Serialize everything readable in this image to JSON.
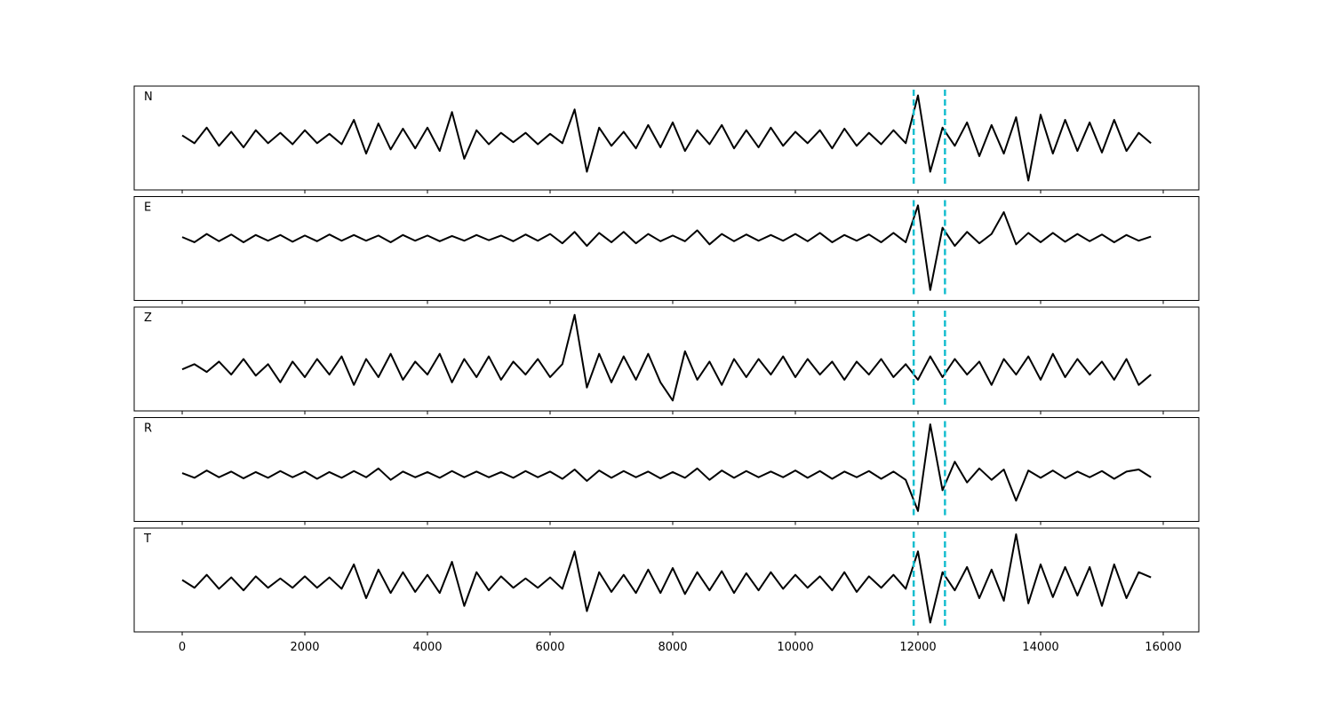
{
  "chart_data": {
    "type": "line",
    "layout": "stacked-panels",
    "x": [
      0,
      200,
      400,
      600,
      800,
      1000,
      1200,
      1400,
      1600,
      1800,
      2000,
      2200,
      2400,
      2600,
      2800,
      3000,
      3200,
      3400,
      3600,
      3800,
      4000,
      4200,
      4400,
      4600,
      4800,
      5000,
      5200,
      5400,
      5600,
      5800,
      6000,
      6200,
      6400,
      6600,
      6800,
      7000,
      7200,
      7400,
      7600,
      7800,
      8000,
      8200,
      8400,
      8600,
      8800,
      9000,
      9200,
      9400,
      9600,
      9800,
      10000,
      10200,
      10400,
      10600,
      10800,
      11000,
      11200,
      11400,
      11600,
      11800,
      12000,
      12200,
      12400,
      12600,
      12800,
      13000,
      13200,
      13400,
      13600,
      13800,
      14000,
      14200,
      14400,
      14600,
      14800,
      15000,
      15200,
      15400,
      15600,
      15800
    ],
    "xlim": [
      -783,
      16580
    ],
    "xticks": [
      0,
      2000,
      4000,
      6000,
      8000,
      10000,
      12000,
      14000,
      16000
    ],
    "vlines": [
      11930,
      12440
    ],
    "vline_color": "#17becf",
    "series": [
      {
        "name": "N",
        "color": "#000000",
        "ylim": [
          -1,
          1
        ],
        "values": [
          0.05,
          -0.1,
          0.2,
          -0.15,
          0.12,
          -0.18,
          0.15,
          -0.1,
          0.1,
          -0.12,
          0.15,
          -0.1,
          0.08,
          -0.12,
          0.35,
          -0.3,
          0.28,
          -0.22,
          0.18,
          -0.2,
          0.2,
          -0.25,
          0.5,
          -0.4,
          0.15,
          -0.12,
          0.1,
          -0.08,
          0.1,
          -0.12,
          0.08,
          -0.1,
          0.55,
          -0.65,
          0.2,
          -0.15,
          0.12,
          -0.2,
          0.25,
          -0.18,
          0.3,
          -0.25,
          0.15,
          -0.12,
          0.25,
          -0.2,
          0.15,
          -0.18,
          0.2,
          -0.15,
          0.12,
          -0.1,
          0.15,
          -0.2,
          0.18,
          -0.15,
          0.1,
          -0.12,
          0.15,
          -0.1,
          0.82,
          -0.65,
          0.2,
          -0.15,
          0.3,
          -0.35,
          0.25,
          -0.3,
          0.4,
          -0.82,
          0.45,
          -0.3,
          0.35,
          -0.25,
          0.3,
          -0.28,
          0.35,
          -0.25,
          0.1,
          -0.1
        ]
      },
      {
        "name": "E",
        "color": "#000000",
        "ylim": [
          -1.2,
          0.8
        ],
        "values": [
          0.02,
          -0.08,
          0.08,
          -0.06,
          0.07,
          -0.08,
          0.06,
          -0.05,
          0.06,
          -0.07,
          0.05,
          -0.06,
          0.07,
          -0.05,
          0.06,
          -0.05,
          0.05,
          -0.08,
          0.06,
          -0.05,
          0.05,
          -0.06,
          0.04,
          -0.05,
          0.06,
          -0.04,
          0.05,
          -0.06,
          0.07,
          -0.05,
          0.08,
          -0.1,
          0.12,
          -0.15,
          0.1,
          -0.08,
          0.12,
          -0.1,
          0.08,
          -0.06,
          0.05,
          -0.06,
          0.15,
          -0.12,
          0.08,
          -0.06,
          0.07,
          -0.05,
          0.06,
          -0.05,
          0.08,
          -0.06,
          0.1,
          -0.08,
          0.06,
          -0.05,
          0.07,
          -0.08,
          0.1,
          -0.08,
          0.63,
          -1.0,
          0.2,
          -0.15,
          0.12,
          -0.1,
          0.08,
          0.5,
          -0.12,
          0.1,
          -0.08,
          0.1,
          -0.07,
          0.08,
          -0.06,
          0.07,
          -0.08,
          0.06,
          -0.05,
          0.03
        ]
      },
      {
        "name": "Z",
        "color": "#000000",
        "ylim": [
          -0.8,
          1.2
        ],
        "values": [
          0.0,
          0.1,
          -0.05,
          0.15,
          -0.1,
          0.2,
          -0.12,
          0.1,
          -0.25,
          0.15,
          -0.15,
          0.2,
          -0.1,
          0.25,
          -0.3,
          0.2,
          -0.15,
          0.3,
          -0.2,
          0.15,
          -0.1,
          0.3,
          -0.25,
          0.2,
          -0.15,
          0.25,
          -0.2,
          0.15,
          -0.1,
          0.2,
          -0.15,
          0.1,
          1.05,
          -0.35,
          0.3,
          -0.25,
          0.25,
          -0.2,
          0.3,
          -0.25,
          -0.6,
          0.35,
          -0.2,
          0.15,
          -0.3,
          0.2,
          -0.15,
          0.2,
          -0.1,
          0.25,
          -0.15,
          0.2,
          -0.1,
          0.15,
          -0.2,
          0.15,
          -0.1,
          0.2,
          -0.15,
          0.1,
          -0.2,
          0.25,
          -0.15,
          0.2,
          -0.1,
          0.15,
          -0.3,
          0.2,
          -0.1,
          0.25,
          -0.2,
          0.3,
          -0.15,
          0.2,
          -0.1,
          0.15,
          -0.2,
          0.2,
          -0.3,
          -0.1
        ]
      },
      {
        "name": "R",
        "color": "#000000",
        "ylim": [
          -0.9,
          1.1
        ],
        "values": [
          0.03,
          -0.06,
          0.08,
          -0.05,
          0.06,
          -0.07,
          0.05,
          -0.06,
          0.07,
          -0.05,
          0.06,
          -0.08,
          0.05,
          -0.06,
          0.07,
          -0.05,
          0.12,
          -0.1,
          0.06,
          -0.05,
          0.05,
          -0.06,
          0.07,
          -0.05,
          0.06,
          -0.05,
          0.05,
          -0.06,
          0.07,
          -0.05,
          0.06,
          -0.08,
          0.1,
          -0.12,
          0.08,
          -0.06,
          0.07,
          -0.05,
          0.06,
          -0.07,
          0.05,
          -0.06,
          0.12,
          -0.1,
          0.08,
          -0.06,
          0.07,
          -0.05,
          0.06,
          -0.05,
          0.08,
          -0.06,
          0.07,
          -0.08,
          0.06,
          -0.05,
          0.07,
          -0.08,
          0.06,
          -0.1,
          -0.7,
          0.97,
          -0.3,
          0.25,
          -0.15,
          0.12,
          -0.1,
          0.1,
          -0.5,
          0.08,
          -0.06,
          0.08,
          -0.07,
          0.06,
          -0.05,
          0.07,
          -0.08,
          0.06,
          0.1,
          -0.05
        ]
      },
      {
        "name": "T",
        "color": "#000000",
        "ylim": [
          -0.95,
          1.05
        ],
        "values": [
          0.05,
          -0.1,
          0.15,
          -0.12,
          0.1,
          -0.15,
          0.12,
          -0.1,
          0.08,
          -0.1,
          0.12,
          -0.1,
          0.1,
          -0.12,
          0.35,
          -0.3,
          0.25,
          -0.2,
          0.2,
          -0.18,
          0.15,
          -0.2,
          0.4,
          -0.45,
          0.2,
          -0.15,
          0.12,
          -0.1,
          0.08,
          -0.1,
          0.1,
          -0.12,
          0.6,
          -0.55,
          0.2,
          -0.18,
          0.15,
          -0.2,
          0.25,
          -0.2,
          0.28,
          -0.22,
          0.2,
          -0.15,
          0.22,
          -0.2,
          0.18,
          -0.15,
          0.2,
          -0.12,
          0.15,
          -0.1,
          0.12,
          -0.15,
          0.2,
          -0.18,
          0.12,
          -0.1,
          0.15,
          -0.12,
          0.6,
          -0.77,
          0.2,
          -0.15,
          0.3,
          -0.3,
          0.25,
          -0.35,
          0.93,
          -0.4,
          0.35,
          -0.28,
          0.3,
          -0.25,
          0.3,
          -0.45,
          0.35,
          -0.3,
          0.2,
          0.1
        ]
      }
    ]
  }
}
